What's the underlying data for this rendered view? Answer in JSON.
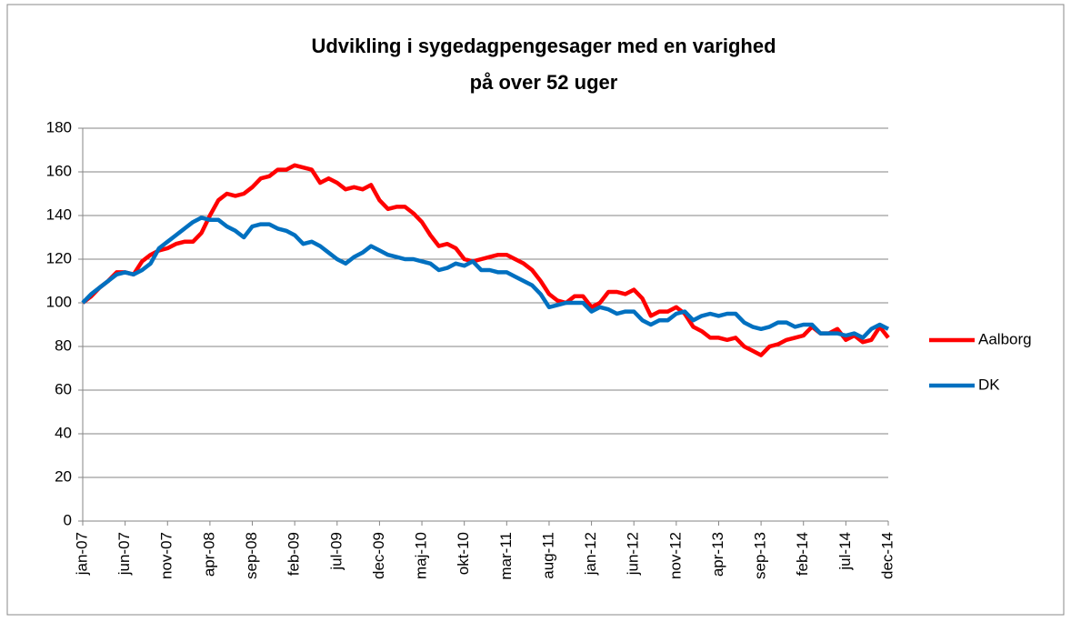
{
  "chart_data": {
    "type": "line",
    "title": [
      "Udvikling i sygedagpengesager med en varighed",
      "på over 52 uger"
    ],
    "categories": [
      "jan-07",
      null,
      null,
      null,
      null,
      "jun-07",
      null,
      null,
      null,
      null,
      "nov-07",
      null,
      null,
      null,
      null,
      "apr-08",
      null,
      null,
      null,
      null,
      "sep-08",
      null,
      null,
      null,
      null,
      "feb-09",
      null,
      null,
      null,
      null,
      "jul-09",
      null,
      null,
      null,
      null,
      "dec-09",
      null,
      null,
      null,
      null,
      "maj-10",
      null,
      null,
      null,
      null,
      "okt-10",
      null,
      null,
      null,
      null,
      "mar-11",
      null,
      null,
      null,
      null,
      "aug-11",
      null,
      null,
      null,
      null,
      "jan-12",
      null,
      null,
      null,
      null,
      "jun-12",
      null,
      null,
      null,
      null,
      "nov-12",
      null,
      null,
      null,
      null,
      "apr-13",
      null,
      null,
      null,
      null,
      "sep-13",
      null,
      null,
      null,
      null,
      "feb-14",
      null,
      null,
      null,
      null,
      "jul-14",
      null,
      null,
      null,
      null,
      "dec-14"
    ],
    "series": [
      {
        "name": "Aalborg",
        "color": "#ff0000",
        "values": [
          100,
          103,
          107,
          110,
          114,
          114,
          113,
          119,
          122,
          124,
          125,
          127,
          128,
          128,
          132,
          140,
          147,
          150,
          149,
          150,
          153,
          157,
          158,
          161,
          161,
          163,
          162,
          161,
          155,
          157,
          155,
          152,
          153,
          152,
          154,
          147,
          143,
          144,
          144,
          141,
          137,
          131,
          126,
          127,
          125,
          120,
          119,
          120,
          121,
          122,
          122,
          120,
          118,
          115,
          110,
          104,
          101,
          100,
          103,
          103,
          98,
          100,
          105,
          105,
          104,
          106,
          102,
          94,
          96,
          96,
          98,
          95,
          89,
          87,
          84,
          84,
          83,
          84,
          80,
          78,
          76,
          80,
          81,
          83,
          84,
          85,
          89,
          86,
          86,
          88,
          83,
          85,
          82,
          83,
          89,
          84
        ]
      },
      {
        "name": "DK",
        "color": "#0070c0",
        "values": [
          100,
          104,
          107,
          110,
          113,
          114,
          113,
          115,
          118,
          125,
          128,
          131,
          134,
          137,
          139,
          138,
          138,
          135,
          133,
          130,
          135,
          136,
          136,
          134,
          133,
          131,
          127,
          128,
          126,
          123,
          120,
          118,
          121,
          123,
          126,
          124,
          122,
          121,
          120,
          120,
          119,
          118,
          115,
          116,
          118,
          117,
          119,
          115,
          115,
          114,
          114,
          112,
          110,
          108,
          104,
          98,
          99,
          100,
          100,
          100,
          96,
          98,
          97,
          95,
          96,
          96,
          92,
          90,
          92,
          92,
          95,
          96,
          92,
          94,
          95,
          94,
          95,
          95,
          91,
          89,
          88,
          89,
          91,
          91,
          89,
          90,
          90,
          86,
          86,
          86,
          85,
          86,
          84,
          88,
          90,
          88
        ]
      }
    ],
    "ylim": [
      0,
      180
    ],
    "yticks": [
      0,
      20,
      40,
      60,
      80,
      100,
      120,
      140,
      160,
      180
    ],
    "grid": true,
    "legend": "right"
  }
}
